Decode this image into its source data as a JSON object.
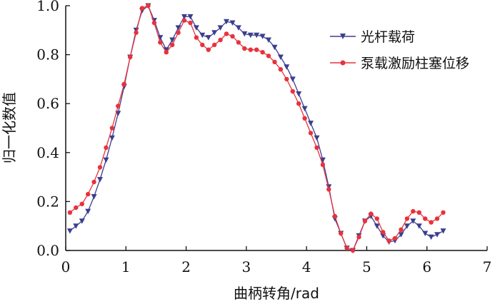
{
  "chart_data": {
    "type": "line",
    "xlabel": "曲柄转角/rad",
    "ylabel": "归一化数值",
    "xlim": [
      0,
      7
    ],
    "ylim": [
      0,
      1.0
    ],
    "xticks": [
      "0",
      "1",
      "2",
      "3",
      "4",
      "5",
      "6",
      "7"
    ],
    "yticks": [
      "0.0",
      "0.2",
      "0.4",
      "0.6",
      "0.8",
      "1.0"
    ],
    "grid": false,
    "legend_position": "top-right",
    "series": [
      {
        "name": "光杆载荷",
        "color": "#3b3f8f",
        "marker": "triangle-down",
        "x": [
          0.07,
          0.17,
          0.27,
          0.37,
          0.47,
          0.57,
          0.67,
          0.77,
          0.87,
          0.97,
          1.07,
          1.17,
          1.27,
          1.37,
          1.47,
          1.57,
          1.67,
          1.77,
          1.87,
          1.97,
          2.07,
          2.17,
          2.27,
          2.37,
          2.47,
          2.57,
          2.67,
          2.77,
          2.87,
          2.97,
          3.07,
          3.17,
          3.27,
          3.37,
          3.47,
          3.57,
          3.67,
          3.77,
          3.87,
          3.97,
          4.07,
          4.17,
          4.27,
          4.37,
          4.47,
          4.57,
          4.67,
          4.77,
          4.87,
          4.97,
          5.07,
          5.17,
          5.27,
          5.37,
          5.47,
          5.57,
          5.67,
          5.77,
          5.87,
          5.97,
          6.07,
          6.17,
          6.27
        ],
        "y": [
          0.08,
          0.1,
          0.12,
          0.16,
          0.22,
          0.29,
          0.37,
          0.46,
          0.56,
          0.67,
          0.79,
          0.9,
          0.98,
          1.0,
          0.94,
          0.87,
          0.82,
          0.86,
          0.91,
          0.955,
          0.955,
          0.91,
          0.88,
          0.87,
          0.89,
          0.91,
          0.935,
          0.93,
          0.91,
          0.885,
          0.88,
          0.88,
          0.875,
          0.86,
          0.83,
          0.79,
          0.75,
          0.7,
          0.64,
          0.58,
          0.52,
          0.46,
          0.37,
          0.26,
          0.13,
          0.07,
          0.01,
          0.0,
          0.06,
          0.12,
          0.14,
          0.1,
          0.06,
          0.035,
          0.04,
          0.065,
          0.1,
          0.12,
          0.1,
          0.07,
          0.055,
          0.065,
          0.08
        ]
      },
      {
        "name": "泵载激励柱塞位移",
        "color": "#e8323c",
        "marker": "circle",
        "x": [
          0.07,
          0.17,
          0.27,
          0.37,
          0.47,
          0.57,
          0.67,
          0.77,
          0.87,
          0.97,
          1.07,
          1.17,
          1.27,
          1.37,
          1.47,
          1.57,
          1.67,
          1.77,
          1.87,
          1.97,
          2.07,
          2.17,
          2.27,
          2.37,
          2.47,
          2.57,
          2.67,
          2.77,
          2.87,
          2.97,
          3.07,
          3.17,
          3.27,
          3.37,
          3.47,
          3.57,
          3.67,
          3.77,
          3.87,
          3.97,
          4.07,
          4.17,
          4.27,
          4.37,
          4.47,
          4.57,
          4.67,
          4.77,
          4.87,
          4.97,
          5.07,
          5.17,
          5.27,
          5.37,
          5.47,
          5.57,
          5.67,
          5.77,
          5.87,
          5.97,
          6.07,
          6.17,
          6.27
        ],
        "y": [
          0.155,
          0.175,
          0.19,
          0.23,
          0.28,
          0.34,
          0.42,
          0.5,
          0.59,
          0.68,
          0.79,
          0.89,
          0.99,
          1.0,
          0.93,
          0.85,
          0.81,
          0.84,
          0.89,
          0.94,
          0.93,
          0.87,
          0.84,
          0.82,
          0.84,
          0.86,
          0.885,
          0.875,
          0.85,
          0.825,
          0.82,
          0.82,
          0.81,
          0.795,
          0.77,
          0.74,
          0.7,
          0.65,
          0.6,
          0.54,
          0.48,
          0.42,
          0.35,
          0.25,
          0.14,
          0.07,
          0.01,
          0.0,
          0.055,
          0.12,
          0.15,
          0.13,
          0.075,
          0.04,
          0.05,
          0.085,
          0.13,
          0.16,
          0.155,
          0.13,
          0.115,
          0.13,
          0.155
        ]
      }
    ]
  }
}
